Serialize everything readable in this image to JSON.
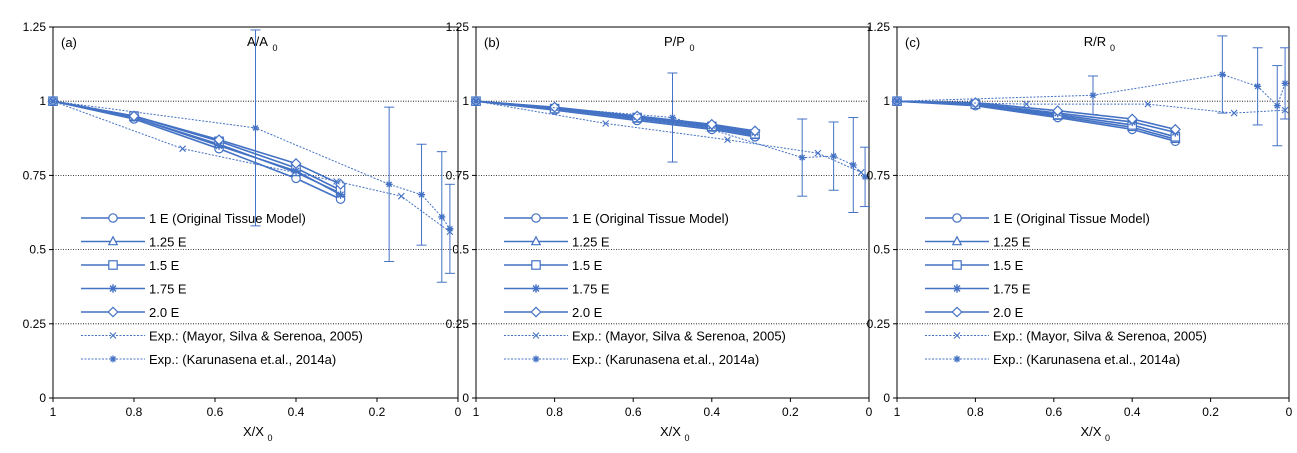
{
  "colors": {
    "series": "#4472C4",
    "grid": "#000000"
  },
  "chart_data": [
    {
      "type": "line",
      "panel_label": "(a)",
      "title_main": "A/A",
      "title_sub": "0",
      "xlabel_main": "X/X",
      "xlabel_sub": "0",
      "xlim": [
        1,
        0
      ],
      "ylim": [
        0,
        1.25
      ],
      "xticks": [
        "1",
        "0.8",
        "0.6",
        "0.4",
        "0.2",
        "0"
      ],
      "yticks": [
        "0",
        "0.25",
        "0.5",
        "0.75",
        "1",
        "1.25"
      ],
      "grid_y": [
        0.25,
        0.5,
        0.75,
        1
      ],
      "series": [
        {
          "name": "1 E (Original Tissue Model)",
          "marker": "circle",
          "x": [
            1,
            0.8,
            0.59,
            0.4,
            0.29
          ],
          "y": [
            1,
            0.94,
            0.84,
            0.74,
            0.67
          ]
        },
        {
          "name": "1.25 E",
          "marker": "triangle",
          "x": [
            1,
            0.8,
            0.59,
            0.4,
            0.29
          ],
          "y": [
            1,
            0.945,
            0.855,
            0.76,
            0.69
          ]
        },
        {
          "name": "1.5 E",
          "marker": "square",
          "x": [
            1,
            0.8,
            0.59,
            0.4,
            0.29
          ],
          "y": [
            1,
            0.95,
            0.865,
            0.775,
            0.7
          ]
        },
        {
          "name": "1.75 E",
          "marker": "asterisk",
          "x": [
            1,
            0.8,
            0.59,
            0.4,
            0.29
          ],
          "y": [
            1,
            0.945,
            0.85,
            0.765,
            0.685
          ]
        },
        {
          "name": "2.0 E",
          "marker": "diamond",
          "x": [
            1,
            0.8,
            0.59,
            0.4,
            0.29
          ],
          "y": [
            1,
            0.95,
            0.87,
            0.79,
            0.72
          ]
        },
        {
          "name": "Exp.: (Mayor, Silva & Serenoa, 2005)",
          "marker": "x",
          "dashed": true,
          "x": [
            1,
            0.68,
            0.3,
            0.14,
            0.02
          ],
          "y": [
            1,
            0.84,
            0.73,
            0.68,
            0.56
          ]
        },
        {
          "name": "Exp.: (Karunasena et.al., 2014a)",
          "marker": "plus",
          "dashed": true,
          "x": [
            1,
            0.5,
            0.17,
            0.09,
            0.04,
            0.02
          ],
          "y": [
            1,
            0.91,
            0.72,
            0.685,
            0.61,
            0.57
          ],
          "err": [
            0,
            0.33,
            0.26,
            0.17,
            0.22,
            0.15
          ]
        }
      ]
    },
    {
      "type": "line",
      "panel_label": "(b)",
      "title_main": "P/P",
      "title_sub": "0",
      "xlabel_main": "X/X",
      "xlabel_sub": "0",
      "xlim": [
        1,
        0
      ],
      "ylim": [
        0,
        1.25
      ],
      "xticks": [
        "1",
        "0.8",
        "0.6",
        "0.4",
        "0.2",
        "0"
      ],
      "yticks": [
        "0",
        "0.25",
        "0.5",
        "0.75",
        "1",
        "1.25"
      ],
      "grid_y": [
        0.25,
        0.5,
        0.75,
        1
      ],
      "series": [
        {
          "name": "1 E (Original Tissue Model)",
          "marker": "circle",
          "x": [
            1,
            0.8,
            0.59,
            0.4,
            0.29
          ],
          "y": [
            1,
            0.97,
            0.935,
            0.905,
            0.88
          ]
        },
        {
          "name": "1.25 E",
          "marker": "triangle",
          "x": [
            1,
            0.8,
            0.59,
            0.4,
            0.29
          ],
          "y": [
            1,
            0.975,
            0.94,
            0.91,
            0.885
          ]
        },
        {
          "name": "1.5 E",
          "marker": "square",
          "x": [
            1,
            0.8,
            0.59,
            0.4,
            0.29
          ],
          "y": [
            1,
            0.975,
            0.945,
            0.915,
            0.89
          ]
        },
        {
          "name": "1.75 E",
          "marker": "asterisk",
          "x": [
            1,
            0.8,
            0.59,
            0.4,
            0.29
          ],
          "y": [
            1,
            0.978,
            0.948,
            0.918,
            0.895
          ]
        },
        {
          "name": "2.0 E",
          "marker": "diamond",
          "x": [
            1,
            0.8,
            0.59,
            0.4,
            0.29
          ],
          "y": [
            1,
            0.98,
            0.95,
            0.922,
            0.9
          ]
        },
        {
          "name": "Exp.: (Mayor, Silva & Serenoa, 2005)",
          "marker": "x",
          "dashed": true,
          "x": [
            1,
            0.67,
            0.36,
            0.13,
            0.02
          ],
          "y": [
            1,
            0.925,
            0.87,
            0.825,
            0.76
          ]
        },
        {
          "name": "Exp.: (Karunasena et.al., 2014a)",
          "marker": "plus",
          "dashed": true,
          "x": [
            1,
            0.5,
            0.17,
            0.09,
            0.04,
            0.01
          ],
          "y": [
            1,
            0.945,
            0.81,
            0.815,
            0.785,
            0.745
          ],
          "err": [
            0,
            0.15,
            0.13,
            0.115,
            0.16,
            0.1
          ]
        }
      ]
    },
    {
      "type": "line",
      "panel_label": "(c)",
      "title_main": "R/R",
      "title_sub": "0",
      "xlabel_main": "X/X",
      "xlabel_sub": "0",
      "xlim": [
        1,
        0
      ],
      "ylim": [
        0,
        1.25
      ],
      "xticks": [
        "1",
        "0.8",
        "0.6",
        "0.4",
        "0.2",
        "0"
      ],
      "yticks": [
        "0",
        "0.25",
        "0.5",
        "0.75",
        "1",
        "1.25"
      ],
      "grid_y": [
        0.25,
        0.5,
        0.75,
        1
      ],
      "series": [
        {
          "name": "1 E (Original Tissue Model)",
          "marker": "circle",
          "x": [
            1,
            0.8,
            0.59,
            0.4,
            0.29
          ],
          "y": [
            1,
            0.985,
            0.945,
            0.905,
            0.865
          ]
        },
        {
          "name": "1.25 E",
          "marker": "triangle",
          "x": [
            1,
            0.8,
            0.59,
            0.4,
            0.29
          ],
          "y": [
            1,
            0.988,
            0.95,
            0.912,
            0.872
          ]
        },
        {
          "name": "1.5 E",
          "marker": "square",
          "x": [
            1,
            0.8,
            0.59,
            0.4,
            0.29
          ],
          "y": [
            1,
            0.99,
            0.955,
            0.92,
            0.88
          ]
        },
        {
          "name": "1.75 E",
          "marker": "asterisk",
          "x": [
            1,
            0.8,
            0.59,
            0.4,
            0.29
          ],
          "y": [
            1,
            0.992,
            0.96,
            0.93,
            0.895
          ]
        },
        {
          "name": "2.0 E",
          "marker": "diamond",
          "x": [
            1,
            0.8,
            0.59,
            0.4,
            0.29
          ],
          "y": [
            1,
            0.995,
            0.968,
            0.94,
            0.905
          ]
        },
        {
          "name": "Exp.: (Mayor, Silva & Serenoa, 2005)",
          "marker": "x",
          "dashed": true,
          "x": [
            1,
            0.67,
            0.36,
            0.14,
            0.01
          ],
          "y": [
            1,
            0.99,
            0.99,
            0.96,
            0.97
          ]
        },
        {
          "name": "Exp.: (Karunasena et.al., 2014a)",
          "marker": "plus",
          "dashed": true,
          "x": [
            1,
            0.5,
            0.17,
            0.08,
            0.03,
            0.01
          ],
          "y": [
            1,
            1.02,
            1.09,
            1.05,
            0.985,
            1.06
          ],
          "err": [
            0,
            0.065,
            0.13,
            0.13,
            0.135,
            0.12
          ]
        }
      ]
    }
  ]
}
